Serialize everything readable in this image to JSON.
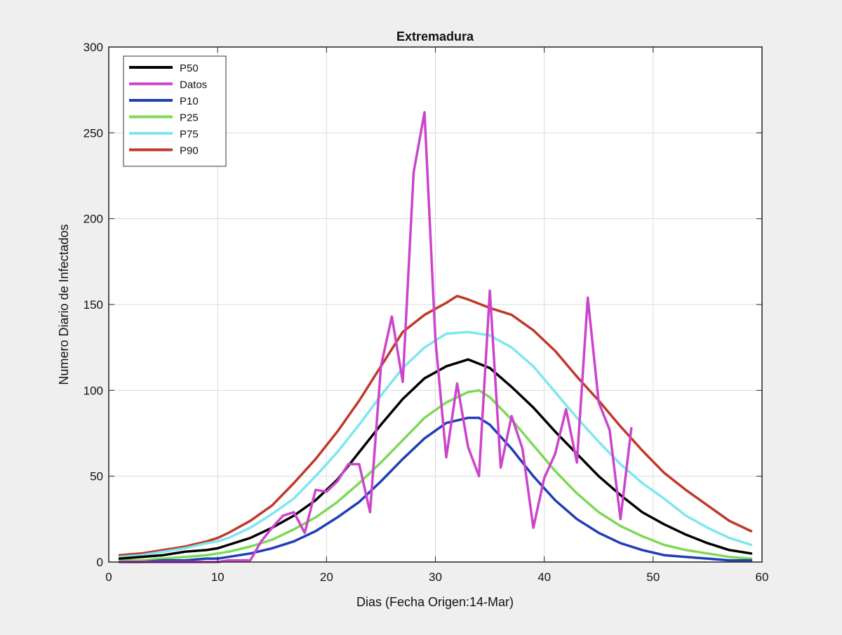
{
  "chart_data": {
    "type": "line",
    "title": "Extremadura",
    "xlabel": "Dias (Fecha Origen:14-Mar)",
    "ylabel": "Numero Diario de Infectados",
    "xlim": [
      0,
      60
    ],
    "ylim": [
      0,
      300
    ],
    "xticks": [
      0,
      10,
      20,
      30,
      40,
      50,
      60
    ],
    "yticks": [
      0,
      50,
      100,
      150,
      200,
      250,
      300
    ],
    "grid": true,
    "legend_position": "top-left",
    "series": [
      {
        "name": "P50",
        "color": "#000000",
        "x": [
          1,
          3,
          5,
          7,
          9,
          10,
          11,
          13,
          15,
          17,
          19,
          21,
          23,
          25,
          27,
          29,
          31,
          33,
          35,
          37,
          39,
          41,
          43,
          45,
          47,
          49,
          51,
          53,
          55,
          57,
          59
        ],
        "y": [
          2,
          3,
          4,
          6,
          7,
          8,
          10,
          14,
          20,
          27,
          36,
          48,
          64,
          80,
          95,
          107,
          114,
          118,
          113,
          102,
          90,
          76,
          63,
          50,
          39,
          29,
          22,
          16,
          11,
          7,
          5
        ]
      },
      {
        "name": "Datos",
        "color": "#cc44cc",
        "x": [
          1,
          3,
          5,
          7,
          9,
          10,
          11,
          12,
          13,
          14,
          15,
          16,
          17,
          18,
          19,
          20,
          21,
          22,
          23,
          24,
          25,
          26,
          27,
          28,
          29,
          30,
          31,
          32,
          33,
          34,
          35,
          36,
          37,
          38,
          39,
          40,
          41,
          42,
          43,
          44,
          45,
          46,
          47,
          48
        ],
        "y": [
          0,
          0,
          0,
          0,
          0,
          0,
          1,
          1,
          1,
          12,
          20,
          27,
          29,
          17,
          42,
          41,
          47,
          57,
          57,
          29,
          114,
          143,
          105,
          227,
          262,
          130,
          61,
          104,
          67,
          50,
          158,
          55,
          85,
          66,
          20,
          49,
          63,
          89,
          58,
          154,
          93,
          77,
          25,
          78
        ]
      },
      {
        "name": "P10",
        "color": "#1f3fb5",
        "x": [
          1,
          3,
          5,
          7,
          9,
          10,
          11,
          13,
          15,
          17,
          19,
          21,
          23,
          25,
          27,
          29,
          31,
          33,
          34,
          35,
          37,
          39,
          41,
          43,
          45,
          47,
          49,
          51,
          53,
          55,
          57,
          59
        ],
        "y": [
          0,
          0,
          1,
          1,
          2,
          2,
          3,
          5,
          8,
          12,
          18,
          26,
          35,
          47,
          60,
          72,
          81,
          84,
          84,
          80,
          66,
          50,
          36,
          25,
          17,
          11,
          7,
          4,
          3,
          2,
          1,
          1
        ]
      },
      {
        "name": "P25",
        "color": "#7ed957",
        "x": [
          1,
          3,
          5,
          7,
          9,
          10,
          11,
          13,
          15,
          17,
          19,
          21,
          23,
          25,
          27,
          29,
          31,
          33,
          34,
          35,
          37,
          39,
          41,
          43,
          45,
          47,
          49,
          51,
          53,
          55,
          57,
          59
        ],
        "y": [
          1,
          1,
          2,
          3,
          4,
          5,
          6,
          9,
          13,
          19,
          26,
          35,
          46,
          58,
          71,
          84,
          93,
          99,
          100,
          96,
          83,
          68,
          53,
          40,
          29,
          21,
          15,
          10,
          7,
          5,
          3,
          2
        ]
      },
      {
        "name": "P75",
        "color": "#7fe6f0",
        "x": [
          1,
          3,
          5,
          7,
          9,
          10,
          11,
          13,
          15,
          17,
          19,
          21,
          23,
          25,
          27,
          29,
          31,
          33,
          35,
          37,
          39,
          41,
          43,
          45,
          47,
          49,
          51,
          53,
          55,
          57,
          59
        ],
        "y": [
          3,
          4,
          6,
          8,
          11,
          12,
          14,
          20,
          28,
          37,
          50,
          64,
          80,
          97,
          113,
          125,
          133,
          134,
          132,
          125,
          114,
          99,
          84,
          70,
          57,
          46,
          37,
          27,
          20,
          14,
          10
        ]
      },
      {
        "name": "P90",
        "color": "#c0392b",
        "x": [
          1,
          3,
          5,
          7,
          9,
          10,
          11,
          13,
          15,
          17,
          19,
          21,
          23,
          25,
          27,
          29,
          31,
          32,
          33,
          35,
          37,
          39,
          41,
          43,
          45,
          47,
          49,
          51,
          53,
          55,
          57,
          59
        ],
        "y": [
          4,
          5,
          7,
          9,
          12,
          14,
          17,
          24,
          33,
          46,
          60,
          76,
          94,
          114,
          134,
          144,
          151,
          155,
          153,
          148,
          144,
          135,
          123,
          108,
          94,
          79,
          65,
          52,
          42,
          33,
          24,
          18
        ]
      }
    ]
  }
}
